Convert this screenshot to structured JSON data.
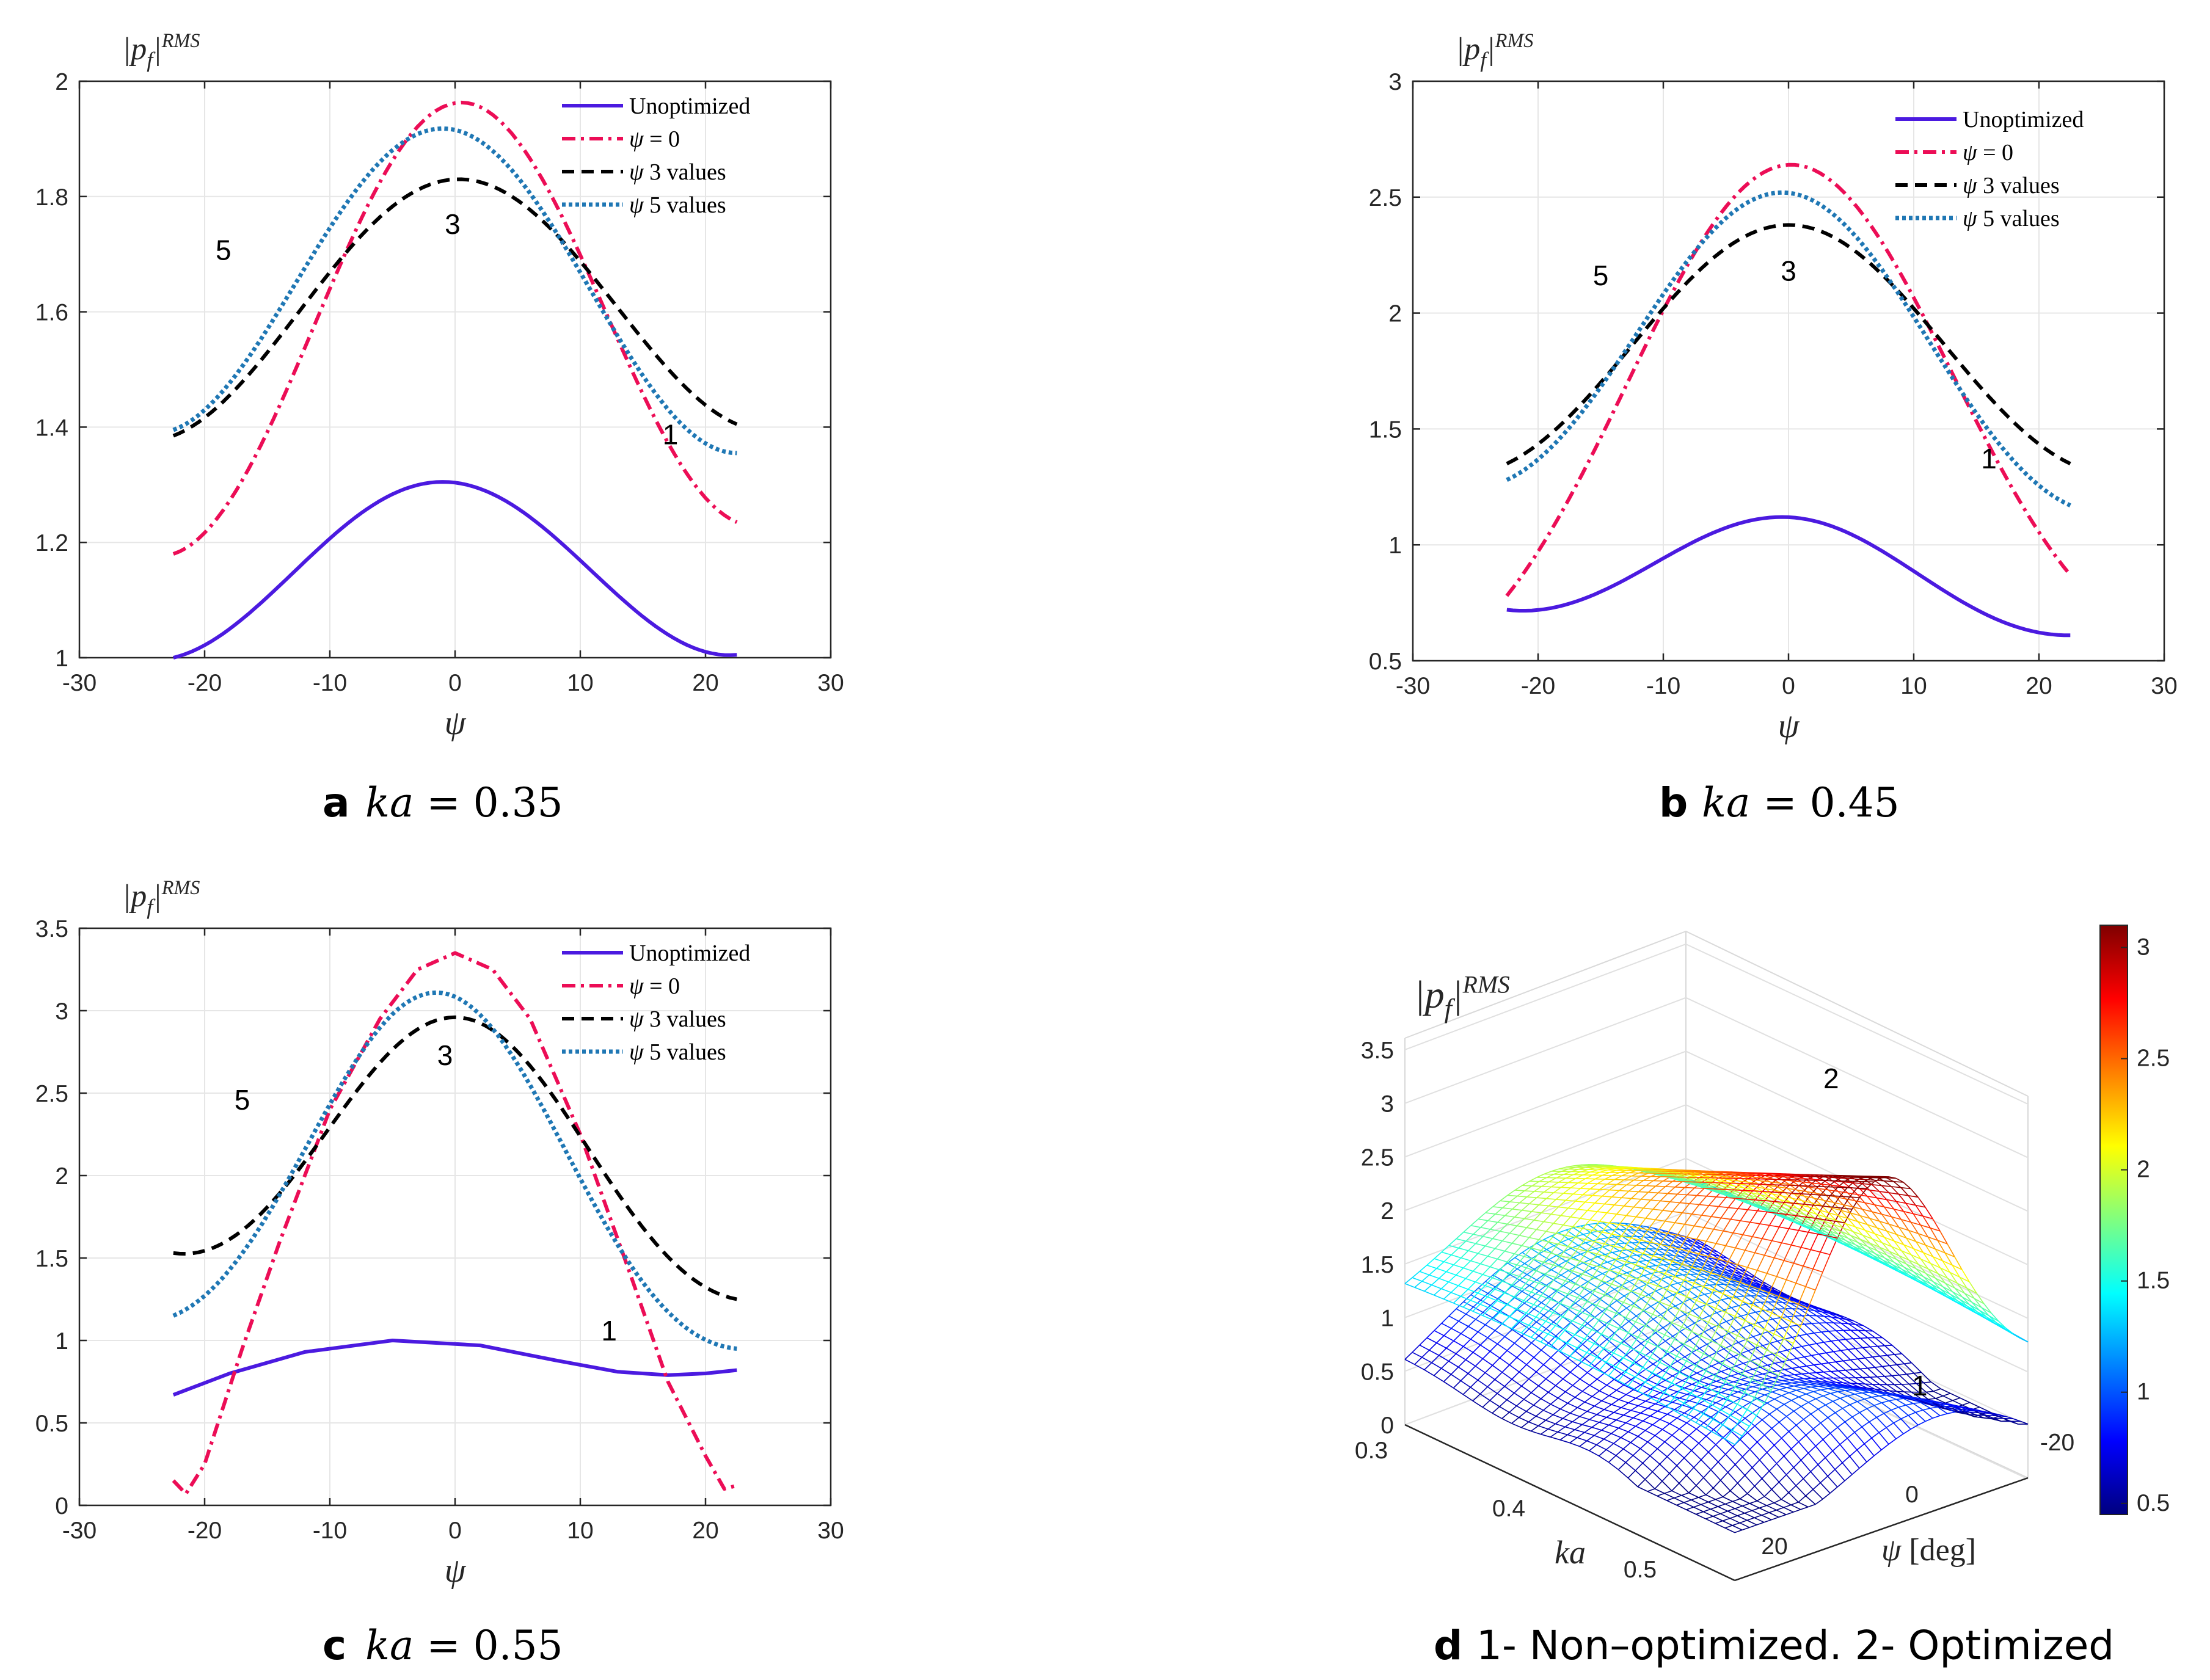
{
  "chart_data": [
    {
      "id": "a",
      "type": "line",
      "caption": {
        "letter": "a",
        "var": "ka",
        "eq": " = 0.35"
      },
      "ylabel": {
        "base": "|p",
        "sub": "f",
        "bar": "|",
        "sup": "RMS"
      },
      "xlabel": "ψ",
      "xlim": [
        -30,
        30
      ],
      "ylim": [
        1,
        2
      ],
      "xticks": [
        -30,
        -20,
        -10,
        0,
        10,
        20,
        30
      ],
      "yticks": [
        1,
        1.2,
        1.4,
        1.6,
        1.8,
        2
      ],
      "legend": [
        "Unoptimized",
        "ψ = 0",
        "ψ 3 values",
        "ψ 5 values"
      ],
      "series": [
        {
          "name": "Unoptimized",
          "center": -1,
          "peak": 1.305,
          "width": 17,
          "left": 1.0,
          "right": 1.005,
          "color": "#4b1ae0"
        },
        {
          "name": "ψ = 0",
          "center": 0.5,
          "peak": 1.963,
          "width": 14.5,
          "left": 1.18,
          "right": 1.235,
          "color": "#ec0d56"
        },
        {
          "name": "ψ 3 values",
          "center": 0.3,
          "peak": 1.83,
          "width": 18,
          "left": 1.385,
          "right": 1.405,
          "color": "#000000"
        },
        {
          "name": "ψ 5 values",
          "center": -1,
          "peak": 1.918,
          "width": 16,
          "left": 1.395,
          "right": 1.355,
          "color": "#1f77b4"
        }
      ],
      "annotations": [
        {
          "text": "5",
          "x": -18.5,
          "y": 1.69
        },
        {
          "text": "3",
          "x": -0.2,
          "y": 1.735
        },
        {
          "text": "1",
          "x": 17.2,
          "y": 1.37
        }
      ]
    },
    {
      "id": "b",
      "type": "line",
      "caption": {
        "letter": "b",
        "var": "ka",
        "eq": " = 0.45"
      },
      "ylabel": {
        "base": "|p",
        "sub": "f",
        "bar": "|",
        "sup": "RMS"
      },
      "xlabel": "ψ",
      "xlim": [
        -30,
        30
      ],
      "ylim": [
        0.5,
        3
      ],
      "xticks": [
        -30,
        -20,
        -10,
        0,
        10,
        20,
        30
      ],
      "yticks": [
        0.5,
        1,
        1.5,
        2,
        2.5,
        3
      ],
      "legend": [
        "Unoptimized",
        "ψ = 0",
        "ψ 3 values",
        "ψ 5 values"
      ],
      "series": [
        {
          "name": "Unoptimized",
          "center": -0.5,
          "peak": 1.12,
          "width": 13,
          "left": 0.72,
          "right": 0.61,
          "color": "#4b1ae0"
        },
        {
          "name": "ψ = 0",
          "center": 0.2,
          "peak": 2.64,
          "width": 13.5,
          "left": 0.78,
          "right": 0.87,
          "color": "#ec0d56"
        },
        {
          "name": "ψ 3 values",
          "center": 0,
          "peak": 2.38,
          "width": 15,
          "left": 1.35,
          "right": 1.35,
          "color": "#000000"
        },
        {
          "name": "ψ 5 values",
          "center": -0.5,
          "peak": 2.52,
          "width": 13.5,
          "left": 1.28,
          "right": 1.17,
          "color": "#1f77b4"
        }
      ],
      "annotations": [
        {
          "text": "5",
          "x": -15,
          "y": 2.12
        },
        {
          "text": "3",
          "x": 0,
          "y": 2.14
        },
        {
          "text": "1",
          "x": 16,
          "y": 1.33
        }
      ]
    },
    {
      "id": "c",
      "type": "line",
      "caption": {
        "letter": "c",
        "var": "ka",
        "eq": " = 0.55"
      },
      "ylabel": {
        "base": "|p",
        "sub": "f",
        "bar": "|",
        "sup": "RMS"
      },
      "xlabel": "ψ",
      "xlim": [
        -30,
        30
      ],
      "ylim": [
        0,
        3.5
      ],
      "xticks": [
        -30,
        -20,
        -10,
        0,
        10,
        20,
        30
      ],
      "yticks": [
        0,
        0.5,
        1,
        1.5,
        2,
        2.5,
        3,
        3.5
      ],
      "legend": [
        "Unoptimized",
        "ψ = 0",
        "ψ 3 values",
        "ψ 5 values"
      ],
      "series": [
        {
          "name": "Unoptimized",
          "points": [
            [
              -22.5,
              0.67
            ],
            [
              -18,
              0.8
            ],
            [
              -12,
              0.93
            ],
            [
              -5,
              1.0
            ],
            [
              2,
              0.97
            ],
            [
              8,
              0.88
            ],
            [
              13,
              0.81
            ],
            [
              17,
              0.79
            ],
            [
              20,
              0.8
            ],
            [
              22.5,
              0.82
            ]
          ],
          "color": "#4b1ae0"
        },
        {
          "name": "ψ = 0",
          "points": [
            [
              -22.5,
              0.15
            ],
            [
              -21.5,
              0.07
            ],
            [
              -20,
              0.25
            ],
            [
              -17,
              0.95
            ],
            [
              -14,
              1.6
            ],
            [
              -10,
              2.4
            ],
            [
              -6,
              2.95
            ],
            [
              -3,
              3.25
            ],
            [
              0,
              3.35
            ],
            [
              3,
              3.25
            ],
            [
              6,
              2.95
            ],
            [
              10,
              2.25
            ],
            [
              14,
              1.4
            ],
            [
              17,
              0.75
            ],
            [
              20,
              0.3
            ],
            [
              21.5,
              0.1
            ],
            [
              22.5,
              0.12
            ]
          ],
          "color": "#ec0d56"
        },
        {
          "name": "ψ 3 values",
          "center": 0,
          "peak": 2.96,
          "width": 12,
          "left": 1.53,
          "right": 1.25,
          "color": "#000000"
        },
        {
          "name": "ψ 5 values",
          "center": -1.5,
          "peak": 3.11,
          "width": 11.2,
          "left": 1.15,
          "right": 0.95,
          "color": "#1f77b4"
        }
      ],
      "annotations": [
        {
          "text": "5",
          "x": -17,
          "y": 2.4
        },
        {
          "text": "3",
          "x": -0.8,
          "y": 2.67
        },
        {
          "text": "1",
          "x": 12.3,
          "y": 1.0
        }
      ]
    },
    {
      "id": "d",
      "type": "surface",
      "caption": {
        "letter": "d",
        "text": " 1- Non–optimized. 2- Optimized"
      },
      "zlabel": {
        "base": "|p",
        "sub": "f",
        "bar": "|",
        "sup": "RMS"
      },
      "xlabel": "ka",
      "ylabel": "ψ [deg]",
      "zticks": [
        "0",
        "0.5",
        "1",
        "1.5",
        "2",
        "2.5",
        "3",
        "3.5"
      ],
      "katicks": [
        "0.3",
        "0.4",
        "0.5"
      ],
      "psiticks": [
        "-20",
        "0",
        "20"
      ],
      "colorbar": {
        "ticks": [
          "0.5",
          "1",
          "1.5",
          "2",
          "2.5",
          "3"
        ],
        "range": [
          0.45,
          3.1
        ]
      },
      "annotations": [
        {
          "text": "2"
        },
        {
          "text": "1"
        }
      ]
    }
  ]
}
